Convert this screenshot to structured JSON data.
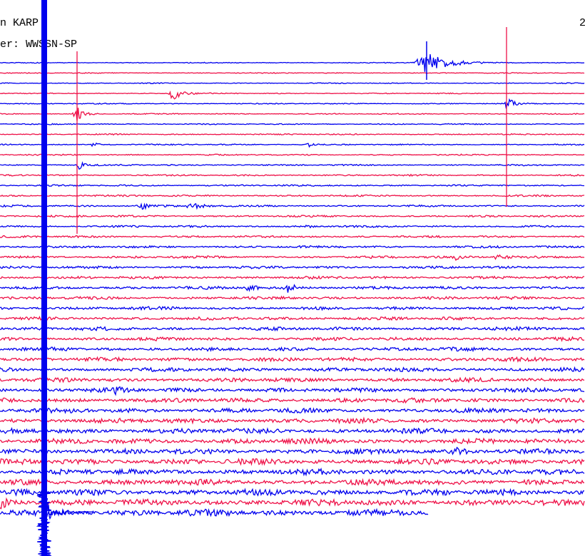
{
  "header": {
    "station": "n KARP",
    "filter": "er: WWSSN-SP",
    "corner": "2"
  }
}
